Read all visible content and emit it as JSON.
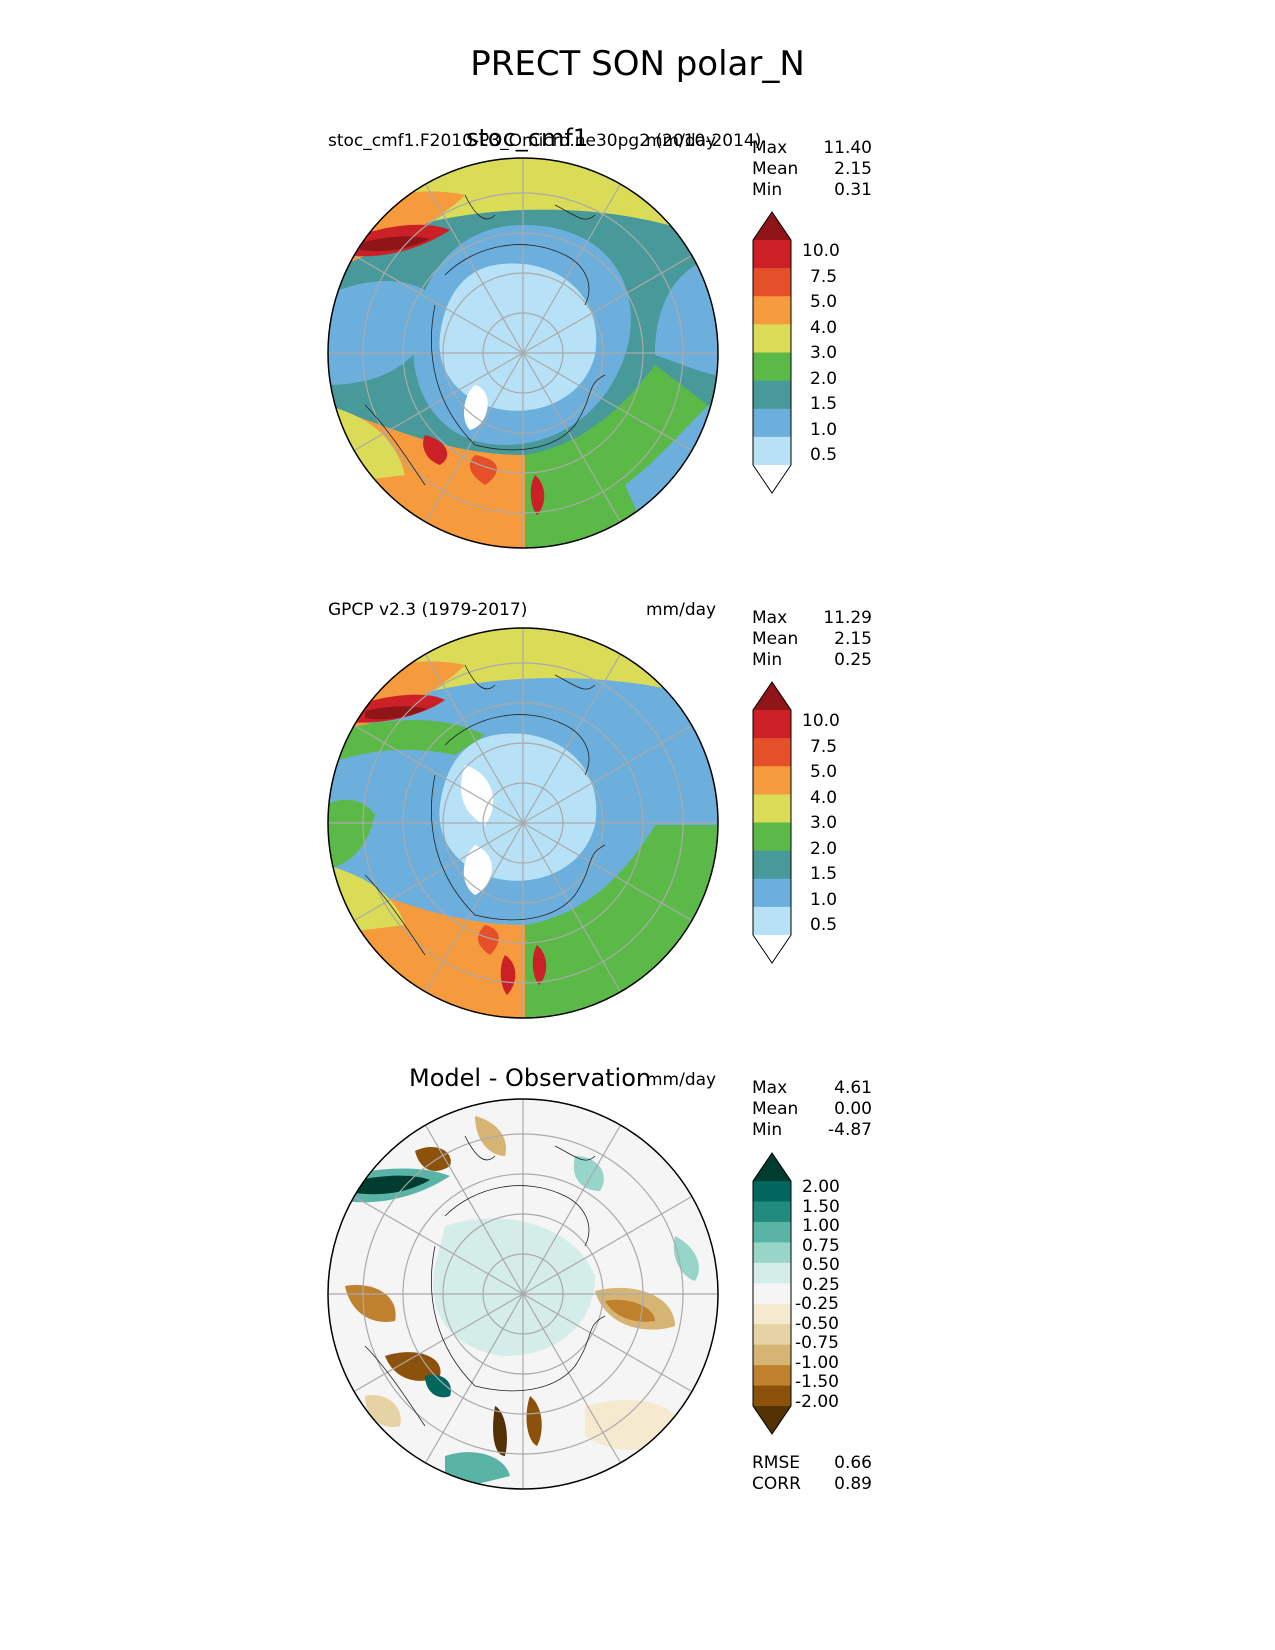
{
  "figure": {
    "title": "PRECT SON polar_N"
  },
  "panels": [
    {
      "id": "test",
      "title": "stoc_cmf1",
      "left_label": "stoc_cmf1.F2010-P3_Omicro.ne30pg2 (2010-2014)",
      "units": "mm/day",
      "stats": [
        {
          "name": "Max",
          "value": "11.40"
        },
        {
          "name": "Mean",
          "value": "2.15"
        },
        {
          "name": "Min",
          "value": "0.31"
        }
      ],
      "colorbar": {
        "ticks": [
          "10.0",
          "7.5",
          "5.0",
          "4.0",
          "3.0",
          "2.0",
          "1.5",
          "1.0",
          "0.5"
        ],
        "colors": [
          "#ffffff",
          "#b7e1f7",
          "#6dafdc",
          "#47999a",
          "#5bba47",
          "#dadb56",
          "#f59a3d",
          "#e5502a",
          "#cc2027",
          "#8f1519"
        ]
      }
    },
    {
      "id": "ref",
      "title": "",
      "left_label": "GPCP v2.3 (1979-2017)",
      "units": "mm/day",
      "stats": [
        {
          "name": "Max",
          "value": "11.29"
        },
        {
          "name": "Mean",
          "value": "2.15"
        },
        {
          "name": "Min",
          "value": "0.25"
        }
      ],
      "colorbar": {
        "ticks": [
          "10.0",
          "7.5",
          "5.0",
          "4.0",
          "3.0",
          "2.0",
          "1.5",
          "1.0",
          "0.5"
        ],
        "colors": [
          "#ffffff",
          "#b7e1f7",
          "#6dafdc",
          "#47999a",
          "#5bba47",
          "#dadb56",
          "#f59a3d",
          "#e5502a",
          "#cc2027",
          "#8f1519"
        ]
      }
    },
    {
      "id": "diff",
      "title": "Model - Observation",
      "left_label": "",
      "units": "mm/day",
      "stats": [
        {
          "name": "Max",
          "value": "4.61"
        },
        {
          "name": "Mean",
          "value": "0.00"
        },
        {
          "name": "Min",
          "value": "-4.87"
        }
      ],
      "colorbar": {
        "ticks": [
          "2.00",
          "1.50",
          "1.00",
          "0.75",
          "0.50",
          "0.25",
          "-0.25",
          "-0.50",
          "-0.75",
          "-1.00",
          "-1.50",
          "-2.00"
        ],
        "colors": [
          "#543005",
          "#8c510a",
          "#bf812d",
          "#d6b574",
          "#e6d3a5",
          "#f5ead0",
          "#f5f5f5",
          "#d5ede8",
          "#98d5c9",
          "#5ab4a6",
          "#228b7f",
          "#00665e",
          "#003c30"
        ]
      },
      "extra_stats": [
        {
          "name": "RMSE",
          "value": "0.66"
        },
        {
          "name": "CORR",
          "value": "0.89"
        }
      ]
    }
  ],
  "chart_data": {
    "type": "heatmap",
    "title": "PRECT SON polar_N",
    "projection": "north polar stereographic",
    "units": "mm/day",
    "panels": [
      {
        "name": "stoc_cmf1",
        "dataset": "stoc_cmf1.F2010-P3_Omicro.ne30pg2 (2010-2014)",
        "max": 11.4,
        "mean": 2.15,
        "min": 0.31,
        "levels": [
          0.5,
          1.0,
          1.5,
          2.0,
          3.0,
          4.0,
          5.0,
          7.5,
          10.0
        ]
      },
      {
        "name": "GPCP v2.3 (1979-2017)",
        "max": 11.29,
        "mean": 2.15,
        "min": 0.25,
        "levels": [
          0.5,
          1.0,
          1.5,
          2.0,
          3.0,
          4.0,
          5.0,
          7.5,
          10.0
        ]
      },
      {
        "name": "Model - Observation",
        "max": 4.61,
        "mean": 0.0,
        "min": -4.87,
        "rmse": 0.66,
        "corr": 0.89,
        "levels": [
          -2.0,
          -1.5,
          -1.0,
          -0.75,
          -0.5,
          -0.25,
          0.25,
          0.5,
          0.75,
          1.0,
          1.5,
          2.0
        ]
      }
    ]
  }
}
